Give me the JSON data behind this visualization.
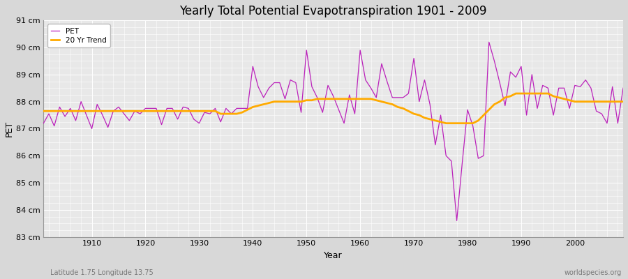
{
  "title": "Yearly Total Potential Evapotranspiration 1901 - 2009",
  "xlabel": "Year",
  "ylabel": "PET",
  "subtitle_left": "Latitude 1.75 Longitude 13.75",
  "subtitle_right": "worldspecies.org",
  "fig_bg_color": "#d8d8d8",
  "plot_bg_color": "#e8e8e8",
  "pet_color": "#bb22bb",
  "trend_color": "#ffaa00",
  "ylim": [
    83,
    91
  ],
  "yticks": [
    83,
    84,
    85,
    86,
    87,
    88,
    89,
    90,
    91
  ],
  "ytick_labels": [
    "83 cm",
    "84 cm",
    "85 cm",
    "86 cm",
    "87 cm",
    "88 cm",
    "89 cm",
    "90 cm",
    "91 cm"
  ],
  "years": [
    1901,
    1902,
    1903,
    1904,
    1905,
    1906,
    1907,
    1908,
    1909,
    1910,
    1911,
    1912,
    1913,
    1914,
    1915,
    1916,
    1917,
    1918,
    1919,
    1920,
    1921,
    1922,
    1923,
    1924,
    1925,
    1926,
    1927,
    1928,
    1929,
    1930,
    1931,
    1932,
    1933,
    1934,
    1935,
    1936,
    1937,
    1938,
    1939,
    1940,
    1941,
    1942,
    1943,
    1944,
    1945,
    1946,
    1947,
    1948,
    1949,
    1950,
    1951,
    1952,
    1953,
    1954,
    1955,
    1956,
    1957,
    1958,
    1959,
    1960,
    1961,
    1962,
    1963,
    1964,
    1965,
    1966,
    1967,
    1968,
    1969,
    1970,
    1971,
    1972,
    1973,
    1974,
    1975,
    1976,
    1977,
    1978,
    1979,
    1980,
    1981,
    1982,
    1983,
    1984,
    1985,
    1986,
    1987,
    1988,
    1989,
    1990,
    1991,
    1992,
    1993,
    1994,
    1995,
    1996,
    1997,
    1998,
    1999,
    2000,
    2001,
    2002,
    2003,
    2004,
    2005,
    2006,
    2007,
    2008,
    2009
  ],
  "pet_values": [
    87.2,
    87.55,
    87.1,
    87.8,
    87.45,
    87.75,
    87.3,
    88.0,
    87.5,
    87.0,
    87.9,
    87.5,
    87.05,
    87.65,
    87.8,
    87.55,
    87.3,
    87.65,
    87.55,
    87.75,
    87.75,
    87.75,
    87.15,
    87.75,
    87.75,
    87.35,
    87.8,
    87.75,
    87.35,
    87.2,
    87.6,
    87.55,
    87.75,
    87.25,
    87.75,
    87.55,
    87.75,
    87.75,
    87.75,
    89.3,
    88.55,
    88.15,
    88.5,
    88.7,
    88.7,
    88.1,
    88.8,
    88.7,
    87.6,
    89.9,
    88.55,
    88.15,
    87.6,
    88.6,
    88.2,
    87.7,
    87.2,
    88.25,
    87.55,
    89.9,
    88.8,
    88.5,
    88.15,
    89.4,
    88.75,
    88.15,
    88.15,
    88.15,
    88.3,
    89.6,
    88.0,
    88.8,
    87.9,
    86.4,
    87.5,
    86.0,
    85.8,
    83.6,
    85.7,
    87.7,
    87.1,
    85.9,
    86.0,
    90.2,
    89.5,
    88.7,
    87.85,
    89.1,
    88.9,
    89.3,
    87.5,
    89.0,
    87.75,
    88.6,
    88.5,
    87.5,
    88.5,
    88.5,
    87.75,
    88.6,
    88.55,
    88.8,
    88.5,
    87.65,
    87.55,
    87.2,
    88.55,
    87.2,
    88.5
  ],
  "trend_values": [
    87.65,
    87.65,
    87.65,
    87.65,
    87.65,
    87.65,
    87.65,
    87.65,
    87.65,
    87.65,
    87.65,
    87.65,
    87.65,
    87.65,
    87.65,
    87.65,
    87.65,
    87.65,
    87.65,
    87.65,
    87.65,
    87.65,
    87.65,
    87.65,
    87.65,
    87.65,
    87.65,
    87.65,
    87.65,
    87.65,
    87.65,
    87.65,
    87.65,
    87.55,
    87.55,
    87.55,
    87.55,
    87.6,
    87.7,
    87.8,
    87.85,
    87.9,
    87.95,
    88.0,
    88.0,
    88.0,
    88.0,
    88.0,
    88.0,
    88.05,
    88.05,
    88.1,
    88.1,
    88.1,
    88.1,
    88.1,
    88.1,
    88.1,
    88.1,
    88.1,
    88.1,
    88.1,
    88.05,
    88.0,
    87.95,
    87.9,
    87.8,
    87.75,
    87.65,
    87.55,
    87.5,
    87.4,
    87.35,
    87.3,
    87.25,
    87.2,
    87.2,
    87.2,
    87.2,
    87.2,
    87.2,
    87.3,
    87.5,
    87.7,
    87.9,
    88.0,
    88.15,
    88.2,
    88.3,
    88.3,
    88.3,
    88.3,
    88.3,
    88.3,
    88.3,
    88.2,
    88.15,
    88.1,
    88.05,
    88.0,
    88.0,
    88.0,
    88.0,
    88.0,
    88.0,
    88.0,
    88.0,
    88.0,
    88.0
  ]
}
